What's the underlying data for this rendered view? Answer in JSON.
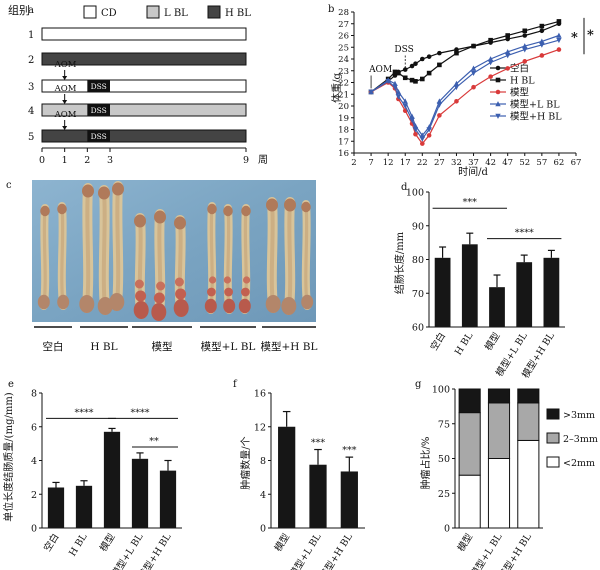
{
  "panel_letters": {
    "a": "a",
    "b": "b",
    "c": "c",
    "d": "d",
    "e": "e",
    "f": "f",
    "g": "g"
  },
  "colors": {
    "cd": "#ffffff",
    "lbl": "#c8c8c8",
    "hbl": "#444444",
    "bar": "#161616",
    "mid_gray": "#a8a8a8",
    "red": "#d93a3a",
    "blue": "#3c5fb0",
    "photo_bg": "#7fa8c6"
  },
  "panel_a": {
    "group_label": "组别",
    "legend": [
      "CD",
      "L BL",
      "H BL"
    ],
    "rows": [
      {
        "num": "1",
        "fill": "cd"
      },
      {
        "num": "2",
        "fill": "hbl"
      },
      {
        "num": "3",
        "fill": "cd",
        "aom": "AOM",
        "dss": "DSS"
      },
      {
        "num": "4",
        "fill": "lbl",
        "aom": "AOM",
        "dss": "DSS"
      },
      {
        "num": "5",
        "fill": "hbl",
        "aom": "AOM",
        "dss": "DSS"
      }
    ],
    "ticks": [
      "0",
      "1",
      "2",
      "3",
      "9"
    ],
    "tick_weeks": [
      0,
      1,
      2,
      3,
      9
    ],
    "xunit": "周"
  },
  "chart_data": [
    {
      "panel": "b",
      "type": "line",
      "ylabel": "体重/g",
      "xlabel": "时间/d",
      "xticks": [
        "2",
        "7",
        "12",
        "17",
        "22",
        "27",
        "32",
        "37",
        "42",
        "47",
        "52",
        "57",
        "62",
        "67"
      ],
      "yticks": [
        "16",
        "17",
        "18",
        "19",
        "20",
        "21",
        "22",
        "23",
        "24",
        "25",
        "26",
        "27",
        "28"
      ],
      "xlim": [
        2,
        67
      ],
      "ylim": [
        16,
        28
      ],
      "x": [
        7,
        12,
        14,
        15,
        17,
        19,
        20,
        22,
        24,
        27,
        32,
        37,
        42,
        47,
        52,
        57,
        62
      ],
      "annotations": [
        "AOM",
        "DSS"
      ],
      "sig": [
        "*",
        "*"
      ],
      "series": [
        {
          "name": "空白",
          "values": [
            21.2,
            22.1,
            22.6,
            22.9,
            23.1,
            23.4,
            23.6,
            24.0,
            24.2,
            24.5,
            24.8,
            25.1,
            25.4,
            25.7,
            26.0,
            26.4,
            27.0
          ]
        },
        {
          "name": "H BL",
          "values": [
            21.2,
            22.3,
            22.9,
            22.8,
            22.4,
            22.2,
            22.1,
            22.3,
            22.8,
            23.5,
            24.5,
            25.1,
            25.6,
            26.0,
            26.4,
            26.8,
            27.2
          ]
        },
        {
          "name": "模型",
          "values": [
            21.2,
            22.0,
            21.5,
            20.6,
            19.6,
            18.5,
            17.6,
            16.8,
            17.5,
            19.2,
            20.4,
            21.6,
            22.5,
            23.2,
            23.8,
            24.3,
            24.8
          ]
        },
        {
          "name": "模型+L BL",
          "values": [
            21.2,
            22.2,
            21.9,
            21.2,
            20.4,
            19.1,
            18.3,
            17.5,
            18.2,
            20.4,
            21.9,
            23.2,
            24.0,
            24.6,
            25.1,
            25.5,
            26.0
          ]
        },
        {
          "name": "模型+H BL",
          "values": [
            21.2,
            22.1,
            21.6,
            20.8,
            20.0,
            18.8,
            18.0,
            17.2,
            18.0,
            20.1,
            21.6,
            22.8,
            23.7,
            24.3,
            24.8,
            25.2,
            25.6
          ]
        }
      ]
    },
    {
      "panel": "d",
      "type": "bar",
      "ylabel": "结肠长度/mm",
      "categories": [
        "空白",
        "H BL",
        "模型",
        "模型+L BL",
        "模型+H BL"
      ],
      "values": [
        80.5,
        84.5,
        71.8,
        79.2,
        80.5
      ],
      "errors": [
        3.2,
        3.3,
        3.6,
        2.1,
        2.2
      ],
      "ylim": [
        60,
        100
      ],
      "yticks": [
        "60",
        "70",
        "80",
        "90",
        "100"
      ],
      "sig": [
        "***",
        "****"
      ]
    },
    {
      "panel": "e",
      "type": "bar",
      "ylabel": "单位长度结肠质量/(mg/mm)",
      "categories": [
        "空白",
        "H BL",
        "模型",
        "模型+L BL",
        "模型+H BL"
      ],
      "values": [
        2.4,
        2.5,
        5.7,
        4.1,
        3.4
      ],
      "errors": [
        0.3,
        0.3,
        0.2,
        0.35,
        0.6
      ],
      "ylim": [
        0,
        8
      ],
      "yticks": [
        "0",
        "2",
        "4",
        "6",
        "8"
      ],
      "sig": [
        "****",
        "****",
        "**"
      ]
    },
    {
      "panel": "f",
      "type": "bar",
      "ylabel": "肿瘤数量/个",
      "categories": [
        "模型",
        "模型+L BL",
        "模型+H BL"
      ],
      "values": [
        12.0,
        7.5,
        6.7
      ],
      "errors": [
        1.8,
        1.8,
        1.7
      ],
      "ylim": [
        0,
        16
      ],
      "yticks": [
        "0",
        "4",
        "8",
        "12",
        "16"
      ],
      "sig": [
        "***",
        "***"
      ]
    },
    {
      "panel": "g",
      "type": "bar",
      "ylabel": "肿瘤占比/%",
      "categories": [
        "模型",
        "模型+L BL",
        "模型+H BL"
      ],
      "ylim": [
        0,
        100
      ],
      "yticks": [
        "0",
        "25",
        "50",
        "75",
        "100"
      ],
      "series": [
        {
          "name": "<2mm",
          "values": [
            38,
            50,
            63
          ]
        },
        {
          "name": "2–3mm",
          "values": [
            45,
            40,
            27
          ]
        },
        {
          "name": ">3mm",
          "values": [
            17,
            10,
            10
          ]
        }
      ]
    }
  ],
  "panel_c": {
    "labels": [
      "空白",
      "H BL",
      "模型",
      "模型+L BL",
      "模型+H BL"
    ]
  }
}
